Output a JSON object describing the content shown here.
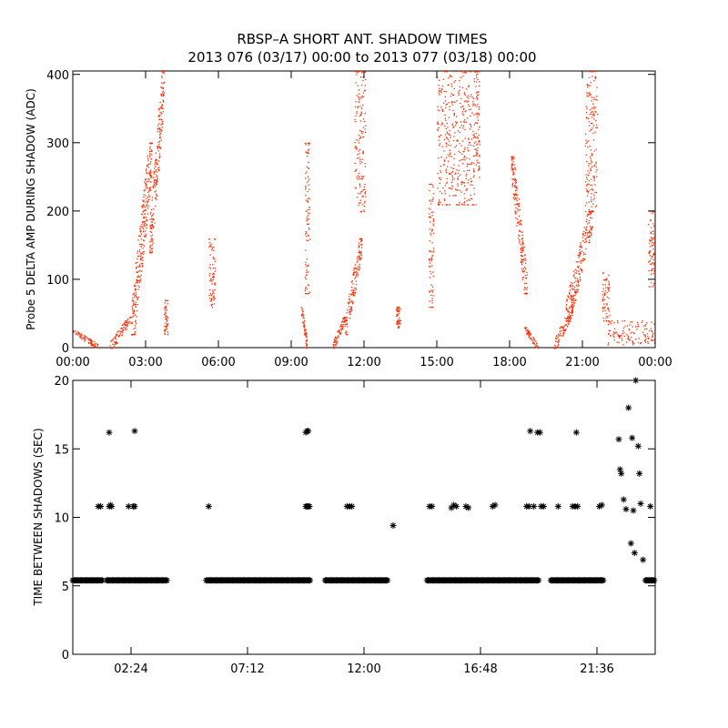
{
  "figure": {
    "title_line1": "RBSP–A SHORT ANT. SHADOW TIMES",
    "title_line2": "2013 076 (03/17) 00:00 to 2013 077 (03/18) 00:00"
  },
  "chart_data": [
    {
      "type": "scatter",
      "title": "",
      "ylabel": "Probe 5 DELTA AMP DURING SHADOW (ADC)",
      "xlabel": "",
      "x_unit": "hours",
      "xlim": [
        0,
        24
      ],
      "ylim": [
        0,
        405
      ],
      "x_ticks": [
        0,
        3,
        6,
        9,
        12,
        15,
        18,
        21,
        24
      ],
      "x_tick_labels": [
        "00:00",
        "03:00",
        "06:00",
        "09:00",
        "12:00",
        "15:00",
        "18:00",
        "21:00",
        "00:00"
      ],
      "y_ticks": [
        0,
        100,
        200,
        300,
        400
      ],
      "y_tick_labels": [
        "0",
        "100",
        "200",
        "300",
        "400"
      ],
      "marker": "dot",
      "color": "#ff2a00",
      "series": [
        {
          "clusters": [
            {
              "x": [
                0.0,
                1.1
              ],
              "y": [
                0,
                25
              ],
              "shape": "decay"
            },
            {
              "x": [
                1.5,
                2.4
              ],
              "y": [
                0,
                45
              ],
              "shape": "rise"
            },
            {
              "x": [
                2.4,
                3.25
              ],
              "y": [
                20,
                300
              ],
              "shape": "rise"
            },
            {
              "x": [
                3.15,
                3.75
              ],
              "y": [
                140,
                405
              ],
              "shape": "rise"
            },
            {
              "x": [
                3.75,
                3.9
              ],
              "y": [
                20,
                70
              ],
              "shape": "band"
            },
            {
              "x": [
                5.6,
                5.85
              ],
              "y": [
                60,
                160
              ],
              "shape": "band"
            },
            {
              "x": [
                9.4,
                9.65
              ],
              "y": [
                0,
                60
              ],
              "shape": "decay"
            },
            {
              "x": [
                9.55,
                9.75
              ],
              "y": [
                80,
                300
              ],
              "shape": "band"
            },
            {
              "x": [
                10.7,
                11.2
              ],
              "y": [
                0,
                45
              ],
              "shape": "rise"
            },
            {
              "x": [
                11.2,
                11.9
              ],
              "y": [
                20,
                160
              ],
              "shape": "rise"
            },
            {
              "x": [
                11.6,
                12.05
              ],
              "y": [
                200,
                405
              ],
              "shape": "band"
            },
            {
              "x": [
                13.3,
                13.5
              ],
              "y": [
                30,
                60
              ],
              "shape": "band"
            },
            {
              "x": [
                14.65,
                14.85
              ],
              "y": [
                60,
                240
              ],
              "shape": "band"
            },
            {
              "x": [
                15.0,
                16.6
              ],
              "y": [
                210,
                405
              ],
              "shape": "band"
            },
            {
              "x": [
                16.6,
                16.75
              ],
              "y": [
                250,
                405
              ],
              "shape": "band"
            },
            {
              "x": [
                18.05,
                18.7
              ],
              "y": [
                80,
                280
              ],
              "shape": "decay"
            },
            {
              "x": [
                18.6,
                19.15
              ],
              "y": [
                0,
                30
              ],
              "shape": "decay"
            },
            {
              "x": [
                19.8,
                20.6
              ],
              "y": [
                0,
                60
              ],
              "shape": "rise"
            },
            {
              "x": [
                20.3,
                21.4
              ],
              "y": [
                40,
                200
              ],
              "shape": "rise"
            },
            {
              "x": [
                21.1,
                21.6
              ],
              "y": [
                200,
                405
              ],
              "shape": "band"
            },
            {
              "x": [
                21.8,
                22.1
              ],
              "y": [
                40,
                110
              ],
              "shape": "band"
            },
            {
              "x": [
                22.0,
                24.0
              ],
              "y": [
                5,
                40
              ],
              "shape": "band"
            },
            {
              "x": [
                23.7,
                23.95
              ],
              "y": [
                90,
                200
              ],
              "shape": "band"
            }
          ]
        }
      ]
    },
    {
      "type": "scatter",
      "title": "",
      "ylabel": "TIME BETWEEN SHADOWS (SEC)",
      "xlabel": "",
      "x_unit": "hours",
      "xlim": [
        0,
        24
      ],
      "ylim": [
        0,
        20
      ],
      "x_ticks": [
        2.4,
        7.2,
        12.0,
        16.8,
        21.6
      ],
      "x_tick_labels": [
        "02:24",
        "07:12",
        "12:00",
        "16:48",
        "21:36"
      ],
      "y_ticks": [
        0,
        5,
        10,
        15,
        20
      ],
      "y_tick_labels": [
        "0",
        "5",
        "10",
        "15",
        "20"
      ],
      "marker": "asterisk",
      "color": "#000000",
      "series": [
        {
          "baseline_segments": [
            {
              "x": [
                0.0,
                1.25
              ],
              "y": 5.4
            },
            {
              "x": [
                1.4,
                3.9
              ],
              "y": 5.4
            },
            {
              "x": [
                5.5,
                9.8
              ],
              "y": 5.4
            },
            {
              "x": [
                10.4,
                13.0
              ],
              "y": 5.4
            },
            {
              "x": [
                14.6,
                19.2
              ],
              "y": 5.4
            },
            {
              "x": [
                19.7,
                21.9
              ],
              "y": 5.4
            },
            {
              "x": [
                23.6,
                24.0
              ],
              "y": 5.4
            }
          ],
          "x": [
            1.05,
            1.15,
            1.5,
            1.55,
            1.6,
            2.3,
            2.5,
            2.55,
            5.6,
            9.6,
            9.65,
            9.7,
            9.75,
            11.3,
            11.4,
            11.5,
            14.7,
            14.8,
            15.6,
            15.7,
            15.8,
            16.2,
            16.3,
            17.3,
            17.4,
            18.7,
            18.8,
            19.0,
            19.3,
            19.4,
            20.0,
            20.6,
            20.7,
            20.8,
            21.7,
            21.8,
            1.5,
            2.55,
            9.6,
            9.65,
            9.7,
            18.85,
            19.15,
            19.25,
            20.75,
            13.2,
            22.5,
            22.55,
            22.6,
            22.7,
            22.8,
            22.9,
            23.0,
            23.05,
            23.1,
            23.15,
            23.2,
            23.3,
            23.35,
            23.4,
            23.5,
            23.8
          ],
          "y": [
            10.8,
            10.8,
            10.8,
            10.9,
            10.8,
            10.8,
            10.8,
            10.8,
            10.8,
            10.8,
            10.8,
            10.8,
            10.8,
            10.8,
            10.8,
            10.8,
            10.8,
            10.8,
            10.7,
            10.9,
            10.8,
            10.8,
            10.7,
            10.8,
            10.9,
            10.8,
            10.8,
            10.8,
            10.8,
            10.8,
            10.8,
            10.8,
            10.8,
            10.8,
            10.8,
            10.9,
            16.2,
            16.3,
            16.2,
            16.3,
            16.3,
            16.3,
            16.2,
            16.2,
            16.2,
            9.4,
            15.7,
            13.5,
            13.2,
            11.3,
            10.6,
            18.0,
            8.1,
            15.8,
            10.5,
            7.4,
            20.0,
            15.2,
            13.2,
            11.0,
            6.9,
            10.8
          ]
        }
      ]
    }
  ]
}
